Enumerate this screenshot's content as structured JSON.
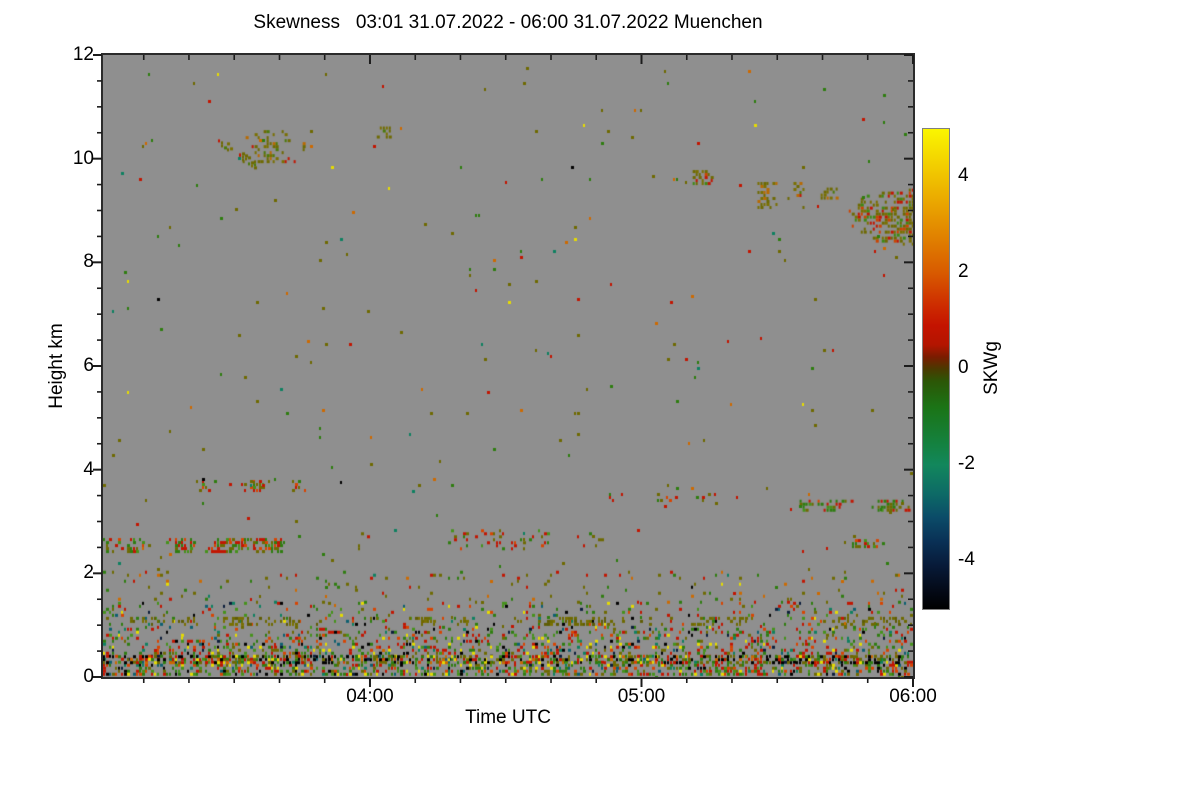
{
  "title": "Skewness   03:01 31.07.2022 - 06:00 31.07.2022 Muenchen",
  "x_axis": {
    "label": "Time UTC",
    "time_range": [
      "03:01",
      "06:00"
    ],
    "major_ticks": [
      {
        "label": "04:00",
        "frac": 0.3296
      },
      {
        "label": "05:00",
        "frac": 0.6648
      },
      {
        "label": "06:00",
        "frac": 1.0
      }
    ],
    "minor_fracs": [
      0.0503,
      0.1061,
      0.162,
      0.2179,
      0.2737,
      0.3855,
      0.4413,
      0.4972,
      0.5531,
      0.6089,
      0.7207,
      0.7765,
      0.8324,
      0.8883,
      0.9441
    ]
  },
  "y_axis": {
    "label": "Height km",
    "range_km": [
      0,
      12
    ],
    "major_ticks": [
      {
        "label": "0",
        "km": 0
      },
      {
        "label": "2",
        "km": 2
      },
      {
        "label": "4",
        "km": 4
      },
      {
        "label": "6",
        "km": 6
      },
      {
        "label": "8",
        "km": 8
      },
      {
        "label": "10",
        "km": 10
      },
      {
        "label": "12",
        "km": 12
      }
    ],
    "minor_km": [
      0.5,
      1,
      1.5,
      2.5,
      3,
      3.5,
      4.5,
      5,
      5.5,
      6.5,
      7,
      7.5,
      8.5,
      9,
      9.5,
      10.5,
      11,
      11.5
    ]
  },
  "colorbar": {
    "label": "SKWg",
    "range": [
      -5,
      5
    ],
    "major_ticks": [
      {
        "label": "4",
        "value": 4
      },
      {
        "label": "2",
        "value": 2
      },
      {
        "label": "0",
        "value": 0
      },
      {
        "label": "-2",
        "value": -2
      },
      {
        "label": "-4",
        "value": -4
      }
    ],
    "minor_values": [
      4.5,
      3.5,
      3,
      2.5,
      1.5,
      1,
      0.5,
      -0.5,
      -1,
      -1.5,
      -2.5,
      -3,
      -3.5,
      -4.5
    ]
  },
  "chart_data": {
    "type": "heatmap",
    "title": "Skewness   03:01 31.07.2022 - 06:00 31.07.2022 Muenchen",
    "xlabel": "Time UTC",
    "ylabel": "Height km",
    "x_range": [
      "03:01",
      "06:00"
    ],
    "y_range_km": [
      0,
      12
    ],
    "value_label": "SKWg",
    "value_range": [
      -5,
      5
    ],
    "background_color": "#8f8f8f",
    "frame_color": "#2b2b2b",
    "colormap_stops": [
      [
        5,
        "#faf600"
      ],
      [
        4,
        "#efb800"
      ],
      [
        3,
        "#e38e00"
      ],
      [
        2,
        "#d85a00"
      ],
      [
        1,
        "#c41300"
      ],
      [
        0.5,
        "#a81800"
      ],
      [
        0,
        "#4a3a00"
      ],
      [
        -0.5,
        "#2c5606"
      ],
      [
        -1,
        "#1b7416"
      ],
      [
        -2,
        "#12875c"
      ],
      [
        -3,
        "#0b4b68"
      ],
      [
        -4,
        "#071a38"
      ],
      [
        -5,
        "#000000"
      ]
    ],
    "palettes": {
      "mix": [
        [
          "#c21500",
          3
        ],
        [
          "#d84400",
          2
        ],
        [
          "#2e7d0f",
          3
        ],
        [
          "#45921a",
          2
        ],
        [
          "#e6dc00",
          1.5
        ],
        [
          "#0e8060",
          1
        ],
        [
          "#000000",
          1.2
        ],
        [
          "#6e6a00",
          2
        ],
        [
          "#0c5f70",
          0.7
        ],
        [
          "#0a1c3a",
          0.5
        ]
      ],
      "mix2": [
        [
          "#6e6a00",
          3
        ],
        [
          "#c21500",
          1.5
        ],
        [
          "#cc6a00",
          1.5
        ],
        [
          "#2e7d0f",
          2
        ],
        [
          "#0e8060",
          0.4
        ],
        [
          "#e6dc00",
          0.4
        ],
        [
          "#000000",
          0.3
        ]
      ],
      "dark": [
        [
          "#000000",
          3
        ],
        [
          "#6e6a00",
          2
        ],
        [
          "#c21500",
          1.5
        ],
        [
          "#2e7d0f",
          1.5
        ],
        [
          "#e6dc00",
          0.7
        ],
        [
          "#cc6a00",
          0.7
        ]
      ],
      "olive": [
        [
          "#6e6a00",
          4
        ],
        [
          "#7a7000",
          2
        ],
        [
          "#5f5c04",
          2
        ]
      ],
      "cloudRG": [
        [
          "#2e7d0f",
          3
        ],
        [
          "#c21500",
          3
        ],
        [
          "#6e6a00",
          2.5
        ],
        [
          "#d84400",
          1
        ],
        [
          "#45921a",
          1.5
        ]
      ],
      "redheavy": [
        [
          "#c21500",
          4
        ],
        [
          "#d84400",
          1.5
        ],
        [
          "#2e7d0f",
          1.5
        ],
        [
          "#6e6a00",
          1.5
        ]
      ],
      "oliveC": [
        [
          "#6e6a00",
          5
        ],
        [
          "#7a7000",
          3
        ],
        [
          "#b86a00",
          1
        ],
        [
          "#c21500",
          0.8
        ],
        [
          "#4c7a08",
          1.5
        ]
      ],
      "oliveR": [
        [
          "#6e6a00",
          4
        ],
        [
          "#7a7000",
          2.5
        ],
        [
          "#c21500",
          1.5
        ],
        [
          "#cc4400",
          1
        ],
        [
          "#3c8a14",
          1.5
        ]
      ]
    },
    "features": [
      {
        "name": "surface-noise-dense",
        "type": "band",
        "x0": 0,
        "x1": 1,
        "h0": 0.08,
        "h1": 0.95,
        "density": 0.42,
        "palette": "mix",
        "grad": true,
        "seed": 11
      },
      {
        "name": "surface-noise-mid",
        "type": "band",
        "x0": 0,
        "x1": 1,
        "h0": 0.95,
        "h1": 1.45,
        "density": 0.12,
        "palette": "mix",
        "seed": 12
      },
      {
        "name": "surface-noise-sparse",
        "type": "band",
        "x0": 0,
        "x1": 1,
        "h0": 1.45,
        "h1": 2.05,
        "density": 0.05,
        "palette": "mix2",
        "seed": 13
      },
      {
        "name": "dark-line-0p35km",
        "type": "band",
        "x0": 0,
        "x1": 1,
        "h0": 0.3,
        "h1": 0.42,
        "density": 0.5,
        "palette": "dark",
        "seed": 14
      },
      {
        "name": "olive-dash-line-1p1km",
        "type": "band",
        "x0": 0,
        "x1": 1,
        "h0": 1.04,
        "h1": 1.16,
        "density": 0.3,
        "palette": "olive",
        "clumpy": true,
        "seed": 15
      },
      {
        "name": "aerosol-streak-2p5km-left",
        "type": "band",
        "x0": 0,
        "x1": 0.255,
        "h0": 2.42,
        "h1": 2.68,
        "density": 0.45,
        "palette": "cloudRG",
        "clumpy": true,
        "seed": 16
      },
      {
        "name": "aerosol-clumps-2p6km-mid",
        "type": "band",
        "x0": 0.3,
        "x1": 0.62,
        "h0": 2.5,
        "h1": 2.85,
        "density": 0.13,
        "palette": "cloudRG",
        "clumpy": true,
        "seed": 17
      },
      {
        "name": "aerosol-streak-2p6km-right",
        "type": "band",
        "x0": 0.895,
        "x1": 0.965,
        "h0": 2.5,
        "h1": 2.66,
        "density": 0.35,
        "palette": "cloudRG",
        "clumpy": true,
        "seed": 18
      },
      {
        "name": "aerosol-streak-3p7km",
        "type": "band",
        "x0": 0.1,
        "x1": 0.3,
        "h0": 3.62,
        "h1": 3.8,
        "density": 0.32,
        "palette": "cloudRG",
        "clumpy": true,
        "seed": 19
      },
      {
        "name": "aerosol-streak-3p4km-mid",
        "type": "band",
        "x0": 0.595,
        "x1": 0.78,
        "h0": 3.38,
        "h1": 3.55,
        "density": 0.42,
        "palette": "redheavy",
        "clumpy": true,
        "seed": 20
      },
      {
        "name": "aerosol-streak-3p3km-right",
        "type": "band",
        "x0": 0.86,
        "x1": 1.0,
        "h0": 3.2,
        "h1": 3.42,
        "density": 0.45,
        "palette": "cloudRG",
        "clumpy": true,
        "seed": 21
      },
      {
        "name": "cirrus-diagonal-10km",
        "type": "diag",
        "x0": 0.142,
        "x1": 0.19,
        "hA": 10.35,
        "hB": 9.85,
        "th": 0.16,
        "density": 0.5,
        "palette": "oliveC",
        "seed": 22
      },
      {
        "name": "cirrus-blob-10p2km",
        "type": "band",
        "x0": 0.165,
        "x1": 0.25,
        "h0": 9.95,
        "h1": 10.55,
        "density": 0.3,
        "palette": "oliveC",
        "clumpy": true,
        "seed": 23
      },
      {
        "name": "cirrus-patch-10p5km",
        "type": "band",
        "x0": 0.338,
        "x1": 0.356,
        "h0": 10.42,
        "h1": 10.62,
        "density": 0.65,
        "palette": "oliveC",
        "seed": 24
      },
      {
        "name": "cloud-9p6km",
        "type": "band",
        "x0": 0.728,
        "x1": 0.752,
        "h0": 9.5,
        "h1": 9.78,
        "density": 0.5,
        "palette": "oliveR",
        "seed": 25
      },
      {
        "name": "cloud-9p3km",
        "type": "band",
        "x0": 0.808,
        "x1": 0.868,
        "h0": 9.05,
        "h1": 9.55,
        "density": 0.42,
        "palette": "oliveC",
        "clumpy": true,
        "seed": 26
      },
      {
        "name": "cloud-9p4km-small",
        "type": "band",
        "x0": 0.886,
        "x1": 0.907,
        "h0": 9.25,
        "h1": 9.5,
        "density": 0.4,
        "palette": "oliveC",
        "seed": 27
      },
      {
        "name": "cloud-big-8p9km",
        "type": "blob",
        "cx": 1.005,
        "cy": 8.9,
        "rx": 0.088,
        "ry": 0.58,
        "density": 0.62,
        "palette": "oliveR",
        "seed": 28
      },
      {
        "name": "ambient-speckle",
        "type": "band",
        "x0": 0,
        "x1": 1,
        "h0": 0,
        "h1": 12,
        "density": 0.005,
        "palette": "mix2",
        "seed": 29
      }
    ]
  }
}
